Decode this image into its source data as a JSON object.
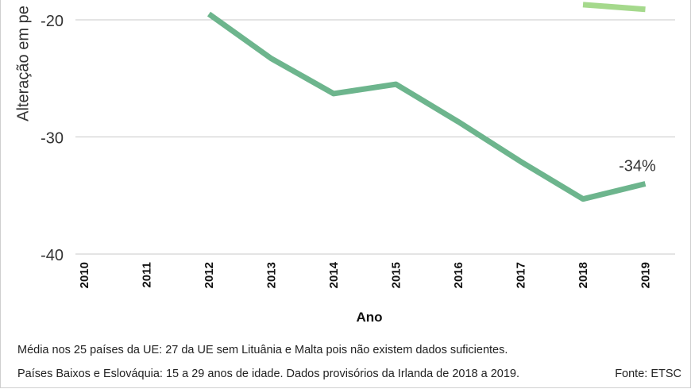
{
  "chart_data": {
    "type": "line",
    "ylabel": "Alteração em pe",
    "xlabel": "Ano",
    "categories": [
      "2010",
      "2011",
      "2012",
      "2013",
      "2014",
      "2015",
      "2016",
      "2017",
      "2018",
      "2019"
    ],
    "ylim": [
      -40,
      -20
    ],
    "yticks": [
      -20,
      -30,
      -40
    ],
    "ytick_labels": [
      "-20",
      "-30",
      "-40"
    ],
    "grid": true,
    "series": [
      {
        "color": "#6db58d",
        "x": [
          "2012",
          "2013",
          "2014",
          "2015",
          "2016",
          "2017",
          "2018",
          "2019"
        ],
        "values": [
          -19.5,
          -23.3,
          -26.3,
          -25.5,
          -28.7,
          -32.1,
          -35.3,
          -34.0
        ],
        "end_label": "-34%"
      },
      {
        "color": "#a5d98c",
        "x": [
          "2018",
          "2019"
        ],
        "values": [
          -18.7,
          -19.1
        ]
      }
    ]
  },
  "notes": {
    "line1": "Média nos 25 países da UE: 27 da UE sem Lituânia e Malta pois não existem dados suficientes.",
    "line2": "Países Baixos e Eslováquia: 15 a 29 anos de idade. Dados provisórios da Irlanda de 2018 a 2019.",
    "source": "Fonte: ETSC"
  }
}
